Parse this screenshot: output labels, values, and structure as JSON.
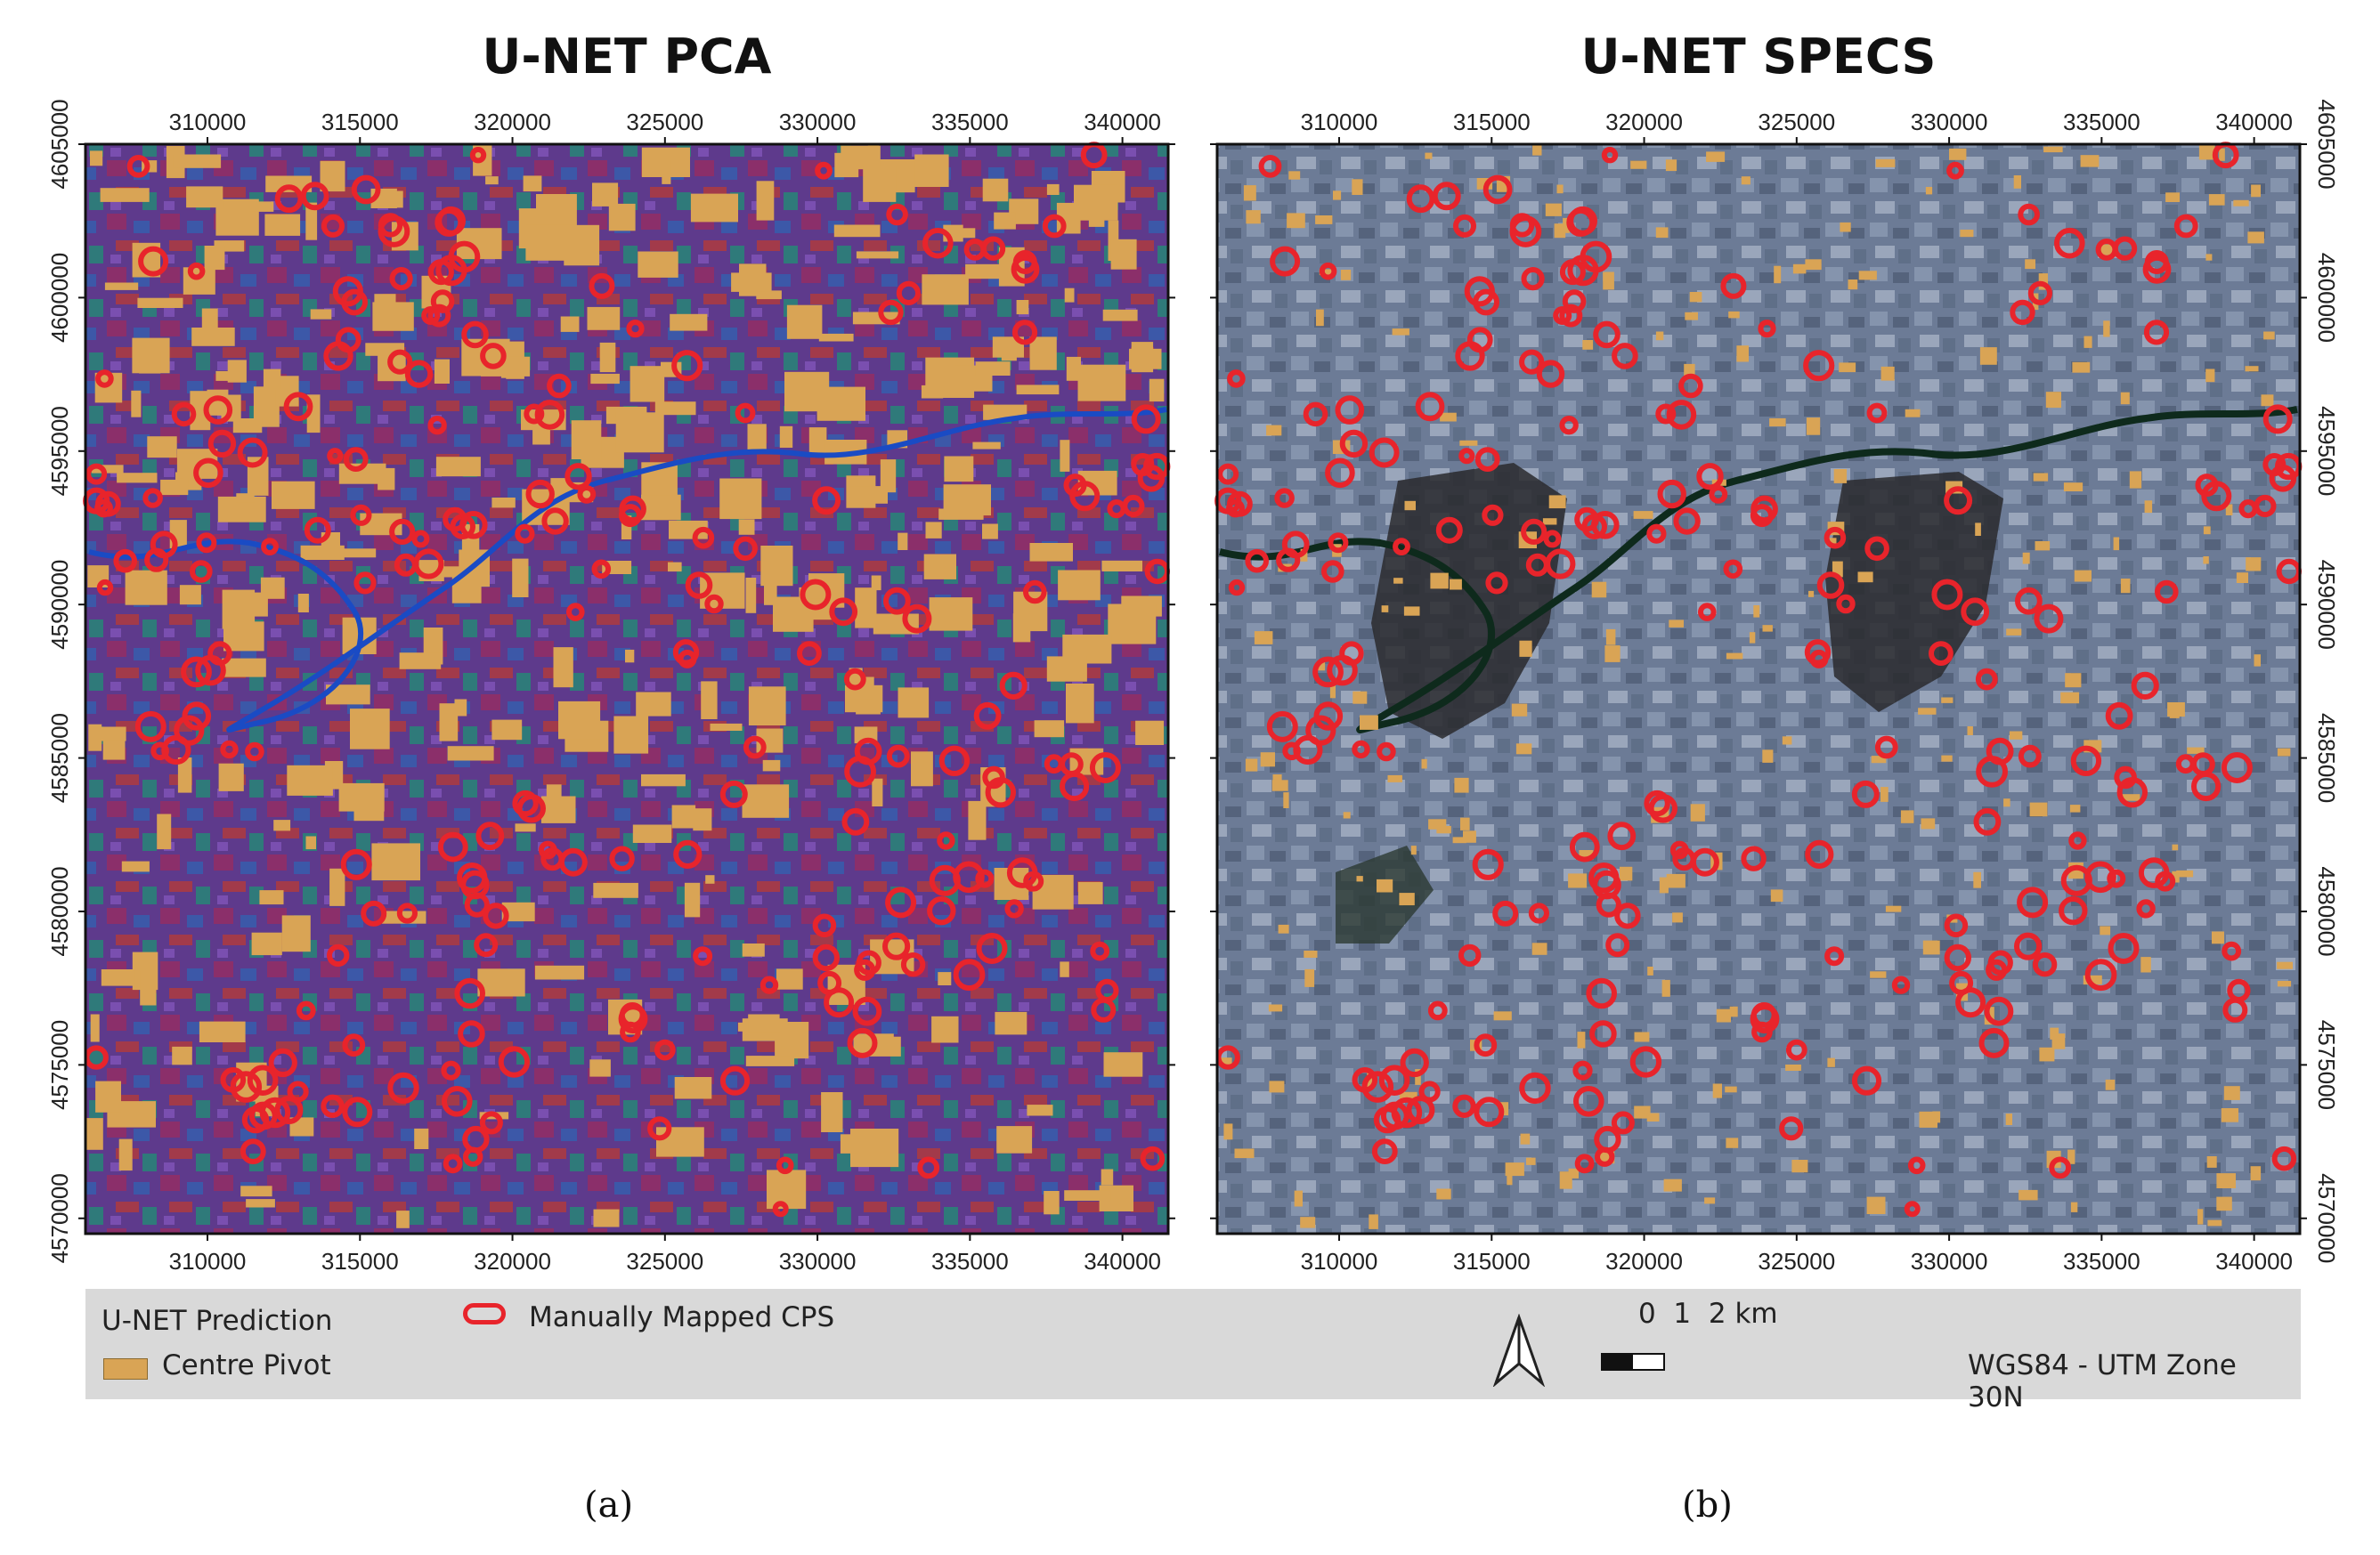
{
  "panels": {
    "a": {
      "title": "U-NET PCA",
      "label": "(a)"
    },
    "b": {
      "title": "U-NET SPECS",
      "label": "(b)"
    }
  },
  "axes": {
    "x_ticks": [
      "310000",
      "315000",
      "320000",
      "325000",
      "330000",
      "335000",
      "340000"
    ],
    "y_ticks": [
      "4605000",
      "4600000",
      "4595000",
      "4590000",
      "4585000",
      "4580000",
      "4575000",
      "4570000"
    ],
    "x_range": [
      306000,
      341500
    ],
    "y_range": [
      4569500,
      4605000
    ]
  },
  "legend": {
    "group_title": "U-NET Prediction",
    "centre_pivot_label": "Centre Pivot",
    "manual_label": "Manually Mapped CPS",
    "scale_label": "0  1  2 km",
    "crs_label": "WGS84 - UTM Zone 30N",
    "north_icon": "north-arrow-icon"
  },
  "colors": {
    "centre_pivot": "#d9a455",
    "manual_cps": "#e8242b",
    "pca_base": "#6a3b8a",
    "specs_base": "#6d7d97",
    "river": "#1a4bc4"
  }
}
